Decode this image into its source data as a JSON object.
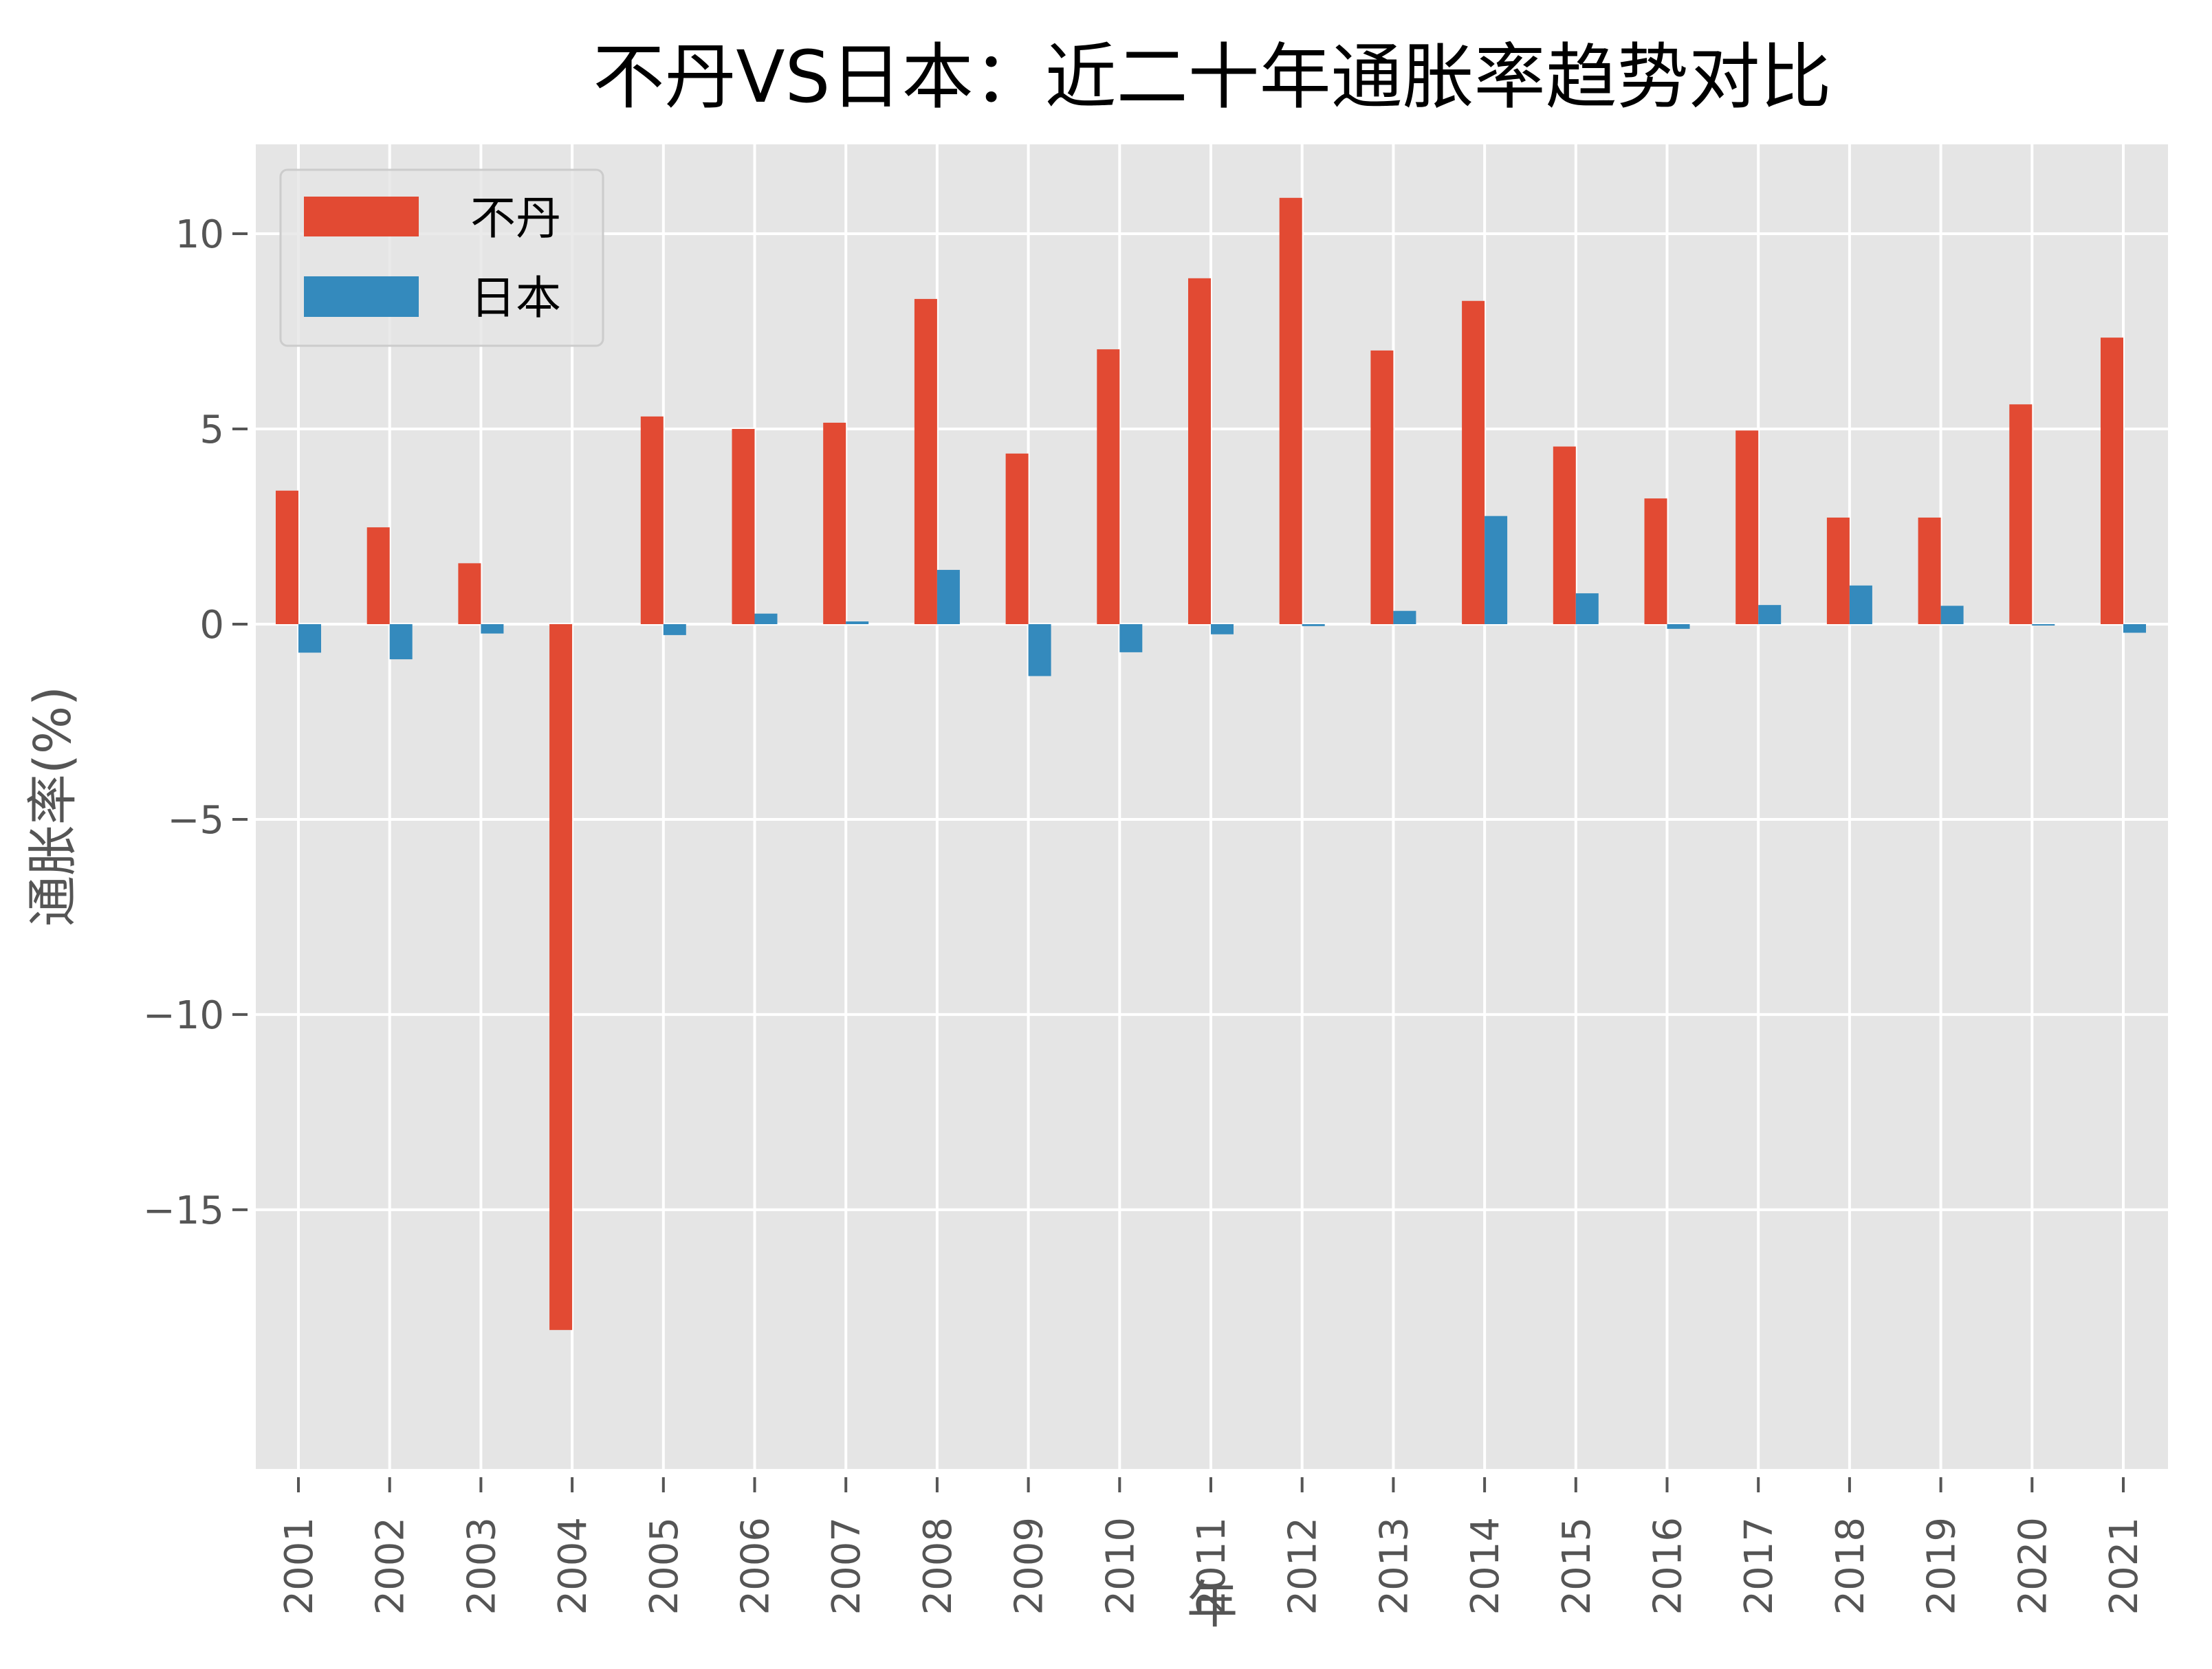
{
  "chart_data": {
    "type": "bar",
    "title": "不丹VS日本：近二十年通胀率趋势对比",
    "xlabel": "年",
    "ylabel": "通胀率(%)",
    "categories": [
      "2001",
      "2002",
      "2003",
      "2004",
      "2005",
      "2006",
      "2007",
      "2008",
      "2009",
      "2010",
      "2011",
      "2012",
      "2013",
      "2014",
      "2015",
      "2016",
      "2017",
      "2018",
      "2019",
      "2020",
      "2021"
    ],
    "series": [
      {
        "name": "不丹",
        "color": "#E24A33",
        "values": [
          3.42,
          2.48,
          1.56,
          -18.08,
          5.32,
          5.0,
          5.16,
          8.33,
          4.37,
          7.04,
          8.86,
          10.92,
          7.01,
          8.28,
          4.55,
          3.22,
          4.96,
          2.73,
          2.73,
          5.63,
          7.34
        ]
      },
      {
        "name": "日本",
        "color": "#348ABD",
        "values": [
          -0.73,
          -0.9,
          -0.24,
          0.0,
          -0.28,
          0.27,
          0.07,
          1.39,
          -1.33,
          -0.72,
          -0.26,
          -0.05,
          0.34,
          2.77,
          0.79,
          -0.12,
          0.49,
          0.99,
          0.47,
          -0.03,
          -0.22
        ]
      }
    ],
    "ylim": [
      -21.64,
      12.29
    ],
    "yticks": [
      -15,
      -10,
      -5,
      0,
      5,
      10
    ],
    "ytick_labels": [
      "−15",
      "−10",
      "−5",
      "0",
      "5",
      "10"
    ],
    "grid": true,
    "legend_position": "upper left",
    "style": {
      "plot_background": "#E5E5E5",
      "grid_color": "#FFFFFF",
      "tick_color": "#555555"
    }
  }
}
